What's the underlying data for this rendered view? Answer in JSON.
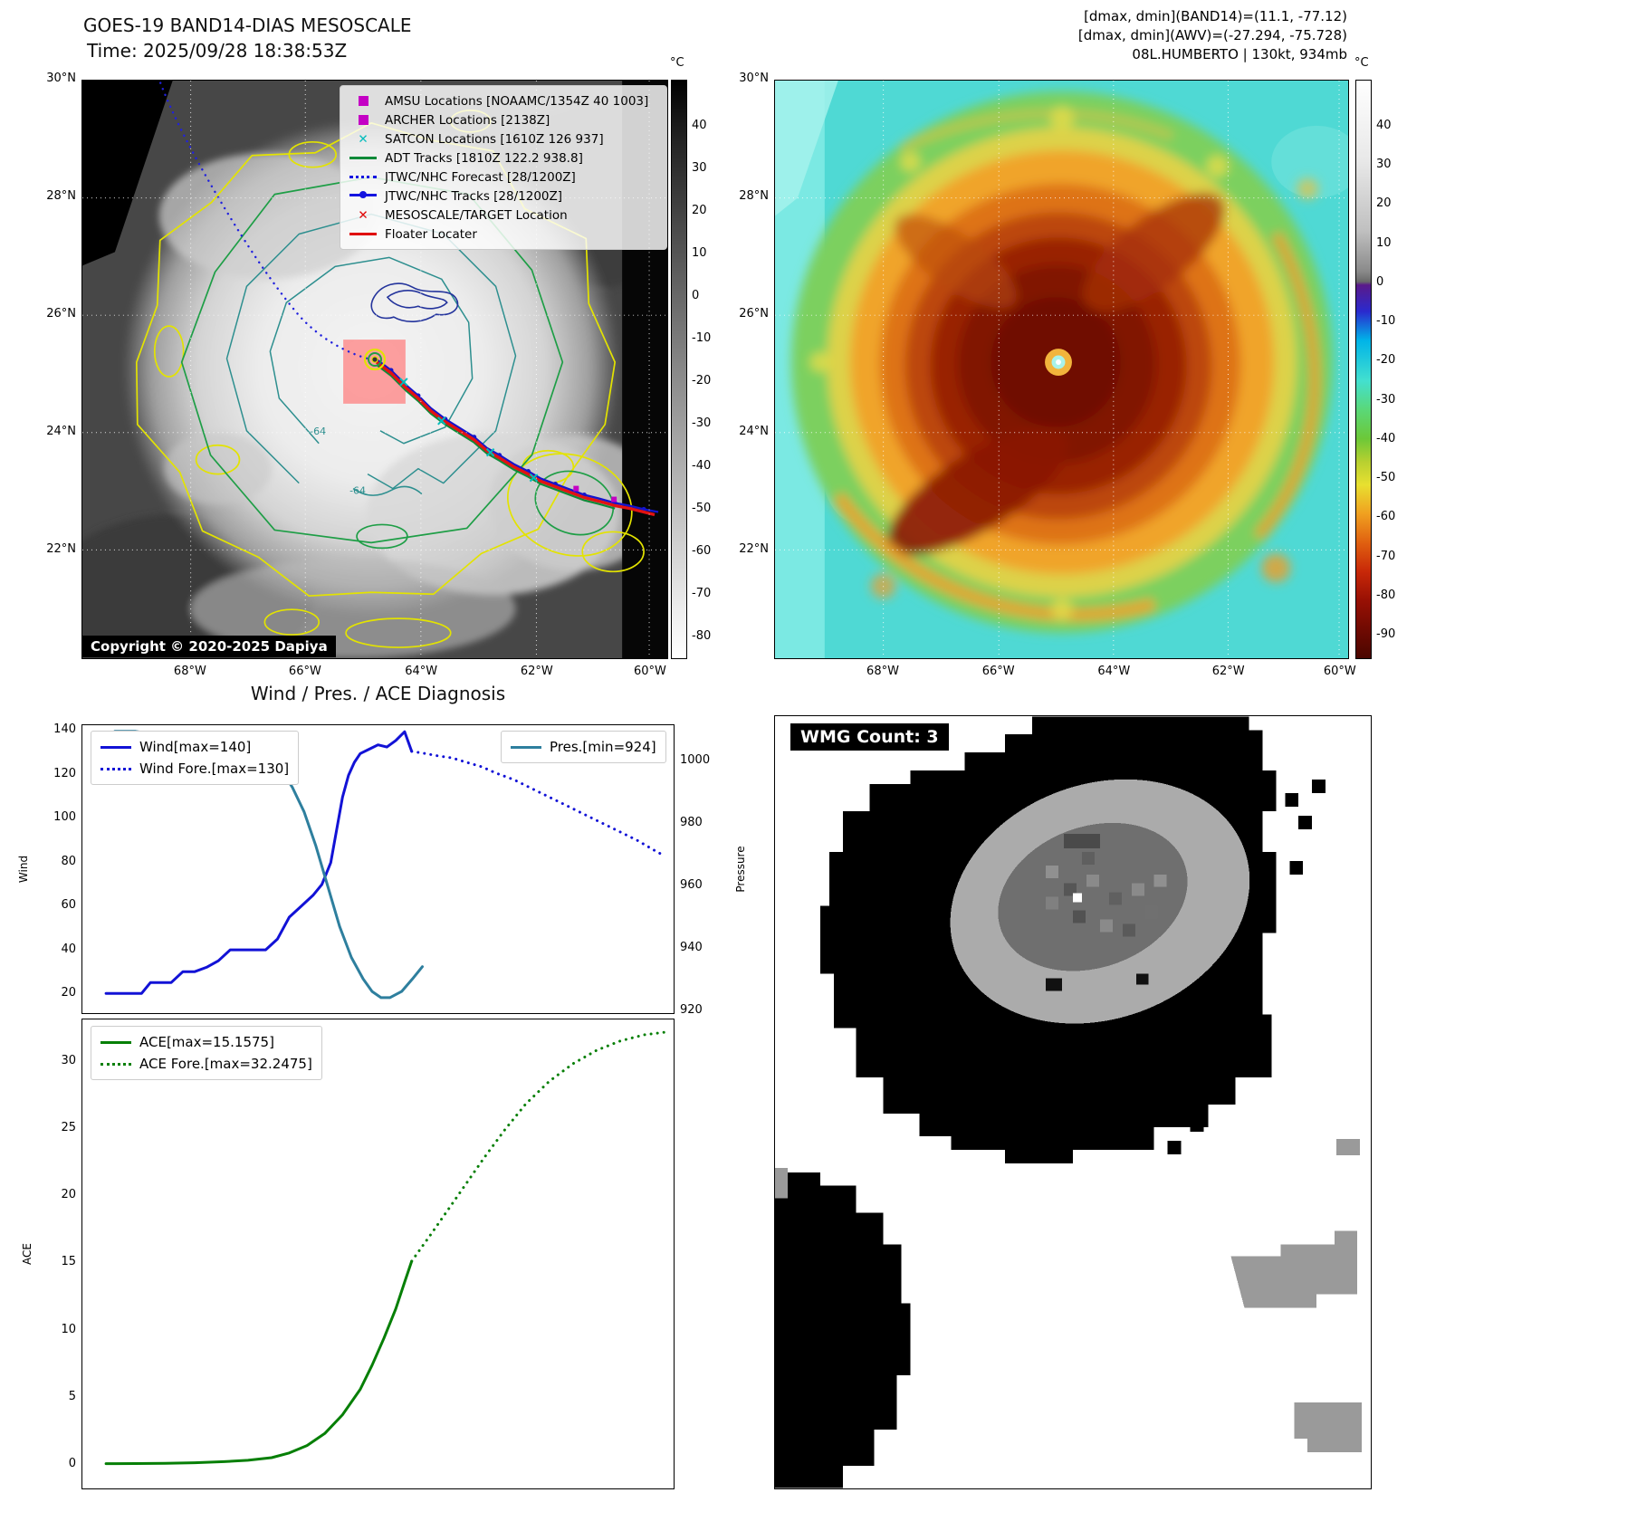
{
  "band14": {
    "title": "GOES-19 BAND14-DIAS MESOSCALE",
    "subtitle": "Time: 2025/09/28 18:38:53Z",
    "copyright": "Copyright © 2020-2025 Dapiya",
    "contour_label": "-64",
    "legend": [
      {
        "label": "AMSU Locations [NOAAMC/1354Z 40 1003]",
        "marker": "square",
        "color": "#c400c4"
      },
      {
        "label": "ARCHER Locations [2138Z]",
        "marker": "square",
        "color": "#c400c4"
      },
      {
        "label": "SATCON Locations [1610Z 126 937]",
        "marker": "x",
        "color": "#00bcbc"
      },
      {
        "label": "ADT Tracks [1810Z 122.2 938.8]",
        "marker": "line",
        "color": "#0e8a38"
      },
      {
        "label": "JTWC/NHC Forecast [28/1200Z]",
        "marker": "dotted",
        "color": "#1414e0"
      },
      {
        "label": "JTWC/NHC Tracks [28/1200Z]",
        "marker": "line-dot",
        "color": "#1414e0"
      },
      {
        "label": "MESOSCALE/TARGET Location",
        "marker": "x",
        "color": "#e00000"
      },
      {
        "label": "Floater Locater",
        "marker": "line",
        "color": "#e00000"
      }
    ],
    "lat_ticks": [
      {
        "label": "30°N",
        "f": 0.0
      },
      {
        "label": "28°N",
        "f": 0.203
      },
      {
        "label": "26°N",
        "f": 0.406
      },
      {
        "label": "24°N",
        "f": 0.609
      },
      {
        "label": "22°N",
        "f": 0.8125
      }
    ],
    "lon_ticks": [
      {
        "label": "68°W",
        "f": 0.185
      },
      {
        "label": "66°W",
        "f": 0.381
      },
      {
        "label": "64°W",
        "f": 0.579
      },
      {
        "label": "62°W",
        "f": 0.776
      },
      {
        "label": "60°W",
        "f": 0.969
      }
    ],
    "colorbar": {
      "unit": "°C",
      "vtop": 51,
      "vbottom": -85,
      "ticks": [
        40,
        30,
        20,
        10,
        0,
        -10,
        -20,
        -30,
        -40,
        -50,
        -60,
        -70,
        -80
      ]
    }
  },
  "awv": {
    "header_lines": [
      "[dmax, dmin](BAND14)=(11.1, -77.12)",
      "[dmax, dmin](AWV)=(-27.294, -75.728)",
      "08L.HUMBERTO | 130kt, 934mb"
    ],
    "lat_ticks": [
      {
        "label": "30°N",
        "f": 0.0
      },
      {
        "label": "28°N",
        "f": 0.203
      },
      {
        "label": "26°N",
        "f": 0.406
      },
      {
        "label": "24°N",
        "f": 0.609
      },
      {
        "label": "22°N",
        "f": 0.8125
      }
    ],
    "lon_ticks": [
      {
        "label": "68°W",
        "f": 0.189
      },
      {
        "label": "66°W",
        "f": 0.39
      },
      {
        "label": "64°W",
        "f": 0.591
      },
      {
        "label": "62°W",
        "f": 0.79
      },
      {
        "label": "60°W",
        "f": 0.984
      }
    ],
    "colorbar": {
      "unit": "°C",
      "vtop": 52,
      "vbottom": -96,
      "ticks": [
        40,
        30,
        20,
        10,
        0,
        -10,
        -20,
        -30,
        -40,
        -50,
        -60,
        -70,
        -80,
        -90
      ]
    }
  },
  "wmg": {
    "label": "WMG Count: 3"
  },
  "chart_data": [
    {
      "id": "wind-pres",
      "type": "line",
      "title": "Wind / Pres. / ACE Diagnosis",
      "ylabel_left": "Wind",
      "ylabel_right": "Pressure",
      "y_left": {
        "lim": [
          11,
          143
        ],
        "ticks": [
          20,
          40,
          60,
          80,
          100,
          120,
          140
        ]
      },
      "y_right": {
        "lim": [
          919,
          1012
        ],
        "ticks": [
          920,
          940,
          960,
          980,
          1000
        ]
      },
      "legend_position": "upper-left and upper-right",
      "grid": false,
      "series": [
        {
          "name": "Wind[max=140]",
          "axis": "left",
          "color": "#1212d6",
          "dash": "solid",
          "width": 3,
          "x": [
            0.04,
            0.06,
            0.08,
            0.1,
            0.115,
            0.13,
            0.15,
            0.17,
            0.19,
            0.21,
            0.23,
            0.25,
            0.27,
            0.29,
            0.31,
            0.33,
            0.35,
            0.37,
            0.39,
            0.405,
            0.42,
            0.43,
            0.44,
            0.45,
            0.46,
            0.47,
            0.485,
            0.5,
            0.515,
            0.53,
            0.545,
            0.557
          ],
          "y": [
            20,
            20,
            20,
            20,
            25,
            25,
            25,
            30,
            30,
            32,
            35,
            40,
            40,
            40,
            40,
            45,
            55,
            60,
            65,
            70,
            80,
            95,
            110,
            120,
            126,
            130,
            132,
            134,
            133,
            136,
            140,
            131
          ]
        },
        {
          "name": "Wind Fore.[max=130]",
          "axis": "left",
          "color": "#1212d6",
          "dash": "dotted",
          "width": 3,
          "x": [
            0.557,
            0.58,
            0.6,
            0.625,
            0.65,
            0.675,
            0.7,
            0.73,
            0.76,
            0.79,
            0.82,
            0.85,
            0.88,
            0.91,
            0.94,
            0.965,
            0.985
          ],
          "y": [
            131,
            130,
            129,
            128,
            126,
            124,
            121,
            118,
            114,
            110,
            106,
            102,
            98,
            94,
            90,
            86,
            83
          ]
        },
        {
          "name": "Pres.[min=924]",
          "axis": "right",
          "color": "#2e7f9e",
          "dash": "solid",
          "width": 3,
          "x": [
            0.055,
            0.09,
            0.125,
            0.16,
            0.195,
            0.23,
            0.26,
            0.29,
            0.315,
            0.335,
            0.355,
            0.375,
            0.395,
            0.415,
            0.435,
            0.455,
            0.475,
            0.49,
            0.505,
            0.52,
            0.54,
            0.558,
            0.575
          ],
          "y": [
            1010,
            1010,
            1009,
            1009,
            1008,
            1007,
            1006,
            1004,
            1002,
            998,
            992,
            984,
            973,
            960,
            947,
            937,
            930,
            926,
            924,
            924,
            926,
            930,
            934
          ]
        }
      ]
    },
    {
      "id": "ace",
      "type": "line",
      "ylabel_left": "ACE",
      "y_left": {
        "lim": [
          -1.8,
          33.2
        ],
        "ticks": [
          0,
          5,
          10,
          15,
          20,
          25,
          30
        ]
      },
      "legend_position": "upper-left",
      "grid": false,
      "series": [
        {
          "name": "ACE[max=15.1575]",
          "axis": "left",
          "color": "#067f06",
          "dash": "solid",
          "width": 3,
          "x": [
            0.04,
            0.09,
            0.14,
            0.19,
            0.24,
            0.28,
            0.32,
            0.35,
            0.38,
            0.41,
            0.44,
            0.47,
            0.49,
            0.51,
            0.53,
            0.545,
            0.557
          ],
          "y": [
            0.05,
            0.06,
            0.08,
            0.12,
            0.2,
            0.3,
            0.5,
            0.85,
            1.4,
            2.3,
            3.7,
            5.6,
            7.4,
            9.4,
            11.6,
            13.6,
            15.16
          ]
        },
        {
          "name": "ACE Fore.[max=32.2475]",
          "axis": "left",
          "color": "#067f06",
          "dash": "dotted",
          "width": 3,
          "x": [
            0.557,
            0.59,
            0.62,
            0.65,
            0.68,
            0.715,
            0.75,
            0.79,
            0.83,
            0.87,
            0.91,
            0.95,
            0.985
          ],
          "y": [
            15.16,
            17.2,
            19.1,
            21.0,
            22.9,
            25.0,
            26.9,
            28.6,
            29.9,
            30.9,
            31.6,
            32.05,
            32.25
          ]
        }
      ]
    }
  ]
}
